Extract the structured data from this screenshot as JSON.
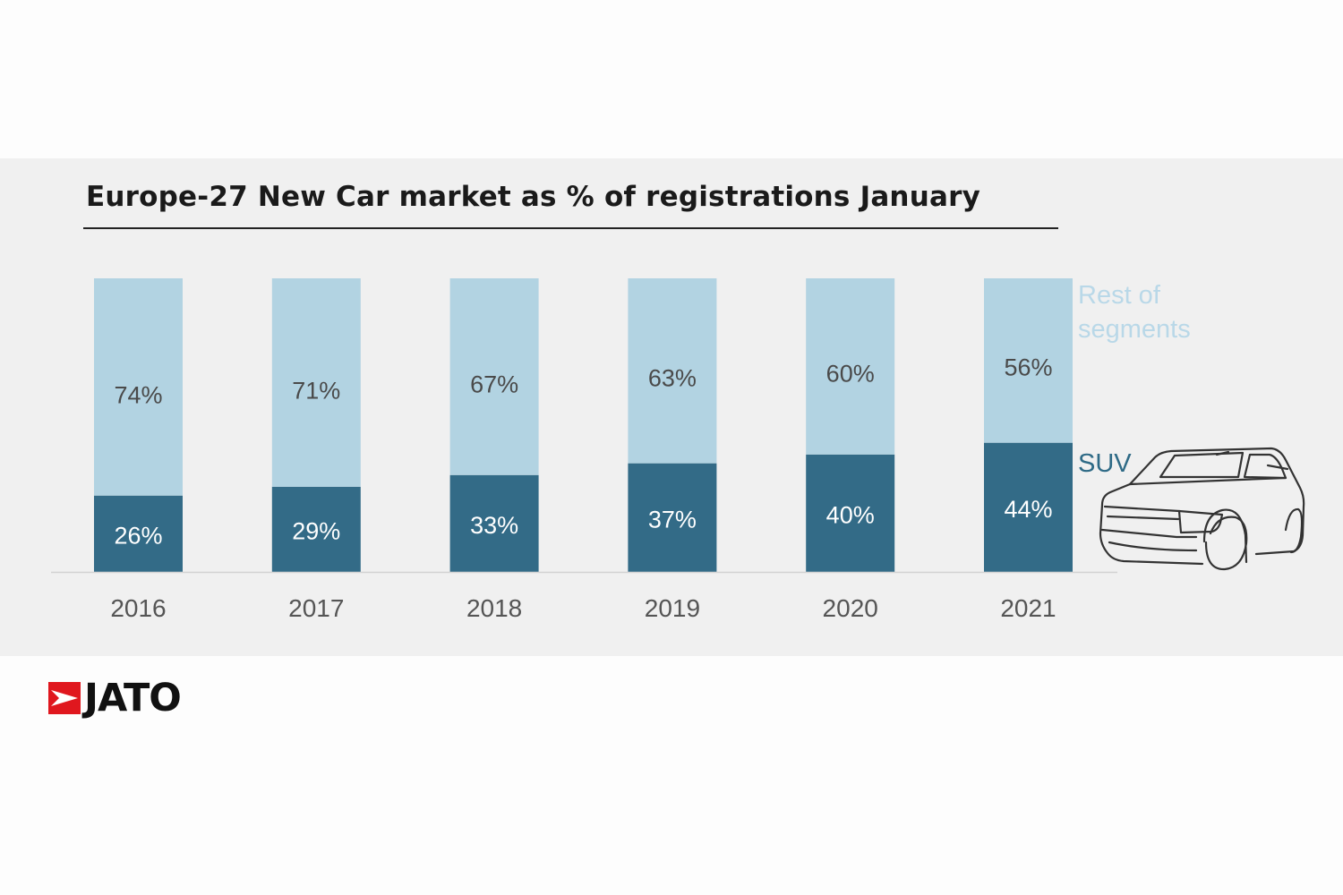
{
  "chart_data": {
    "type": "bar",
    "stacked": true,
    "title": "Europe-27 New Car market as % of registrations January",
    "categories": [
      "2016",
      "2017",
      "2018",
      "2019",
      "2020",
      "2021"
    ],
    "series": [
      {
        "name": "SUV",
        "values": [
          26,
          29,
          33,
          37,
          40,
          44
        ],
        "labels": [
          "26%",
          "29%",
          "33%",
          "37%",
          "40%",
          "44%"
        ],
        "color": "#336b87",
        "label_color": "#ffffff"
      },
      {
        "name": "Rest of segments",
        "values": [
          74,
          71,
          67,
          63,
          60,
          56
        ],
        "labels": [
          "74%",
          "71%",
          "67%",
          "63%",
          "60%",
          "56%"
        ],
        "color": "#b2d3e2",
        "label_color": "#4a4a4a"
      }
    ],
    "ylim": [
      0,
      100
    ],
    "grid": false,
    "legend": "right, inline labels"
  },
  "legend": {
    "rest_line1": "Rest of",
    "rest_line2": "segments",
    "suv": "SUV"
  },
  "colors": {
    "panel": "#f0f0f0",
    "suv": "#336b87",
    "rest": "#b2d3e2",
    "rest_legend": "#b9d8e8",
    "suv_legend": "#2e6a86",
    "axis_text": "#555555"
  },
  "illustration": {
    "name": "suv-car-outline",
    "color": "#333333"
  },
  "brand": {
    "name": "JATO",
    "mark_color": "#e0171e"
  }
}
